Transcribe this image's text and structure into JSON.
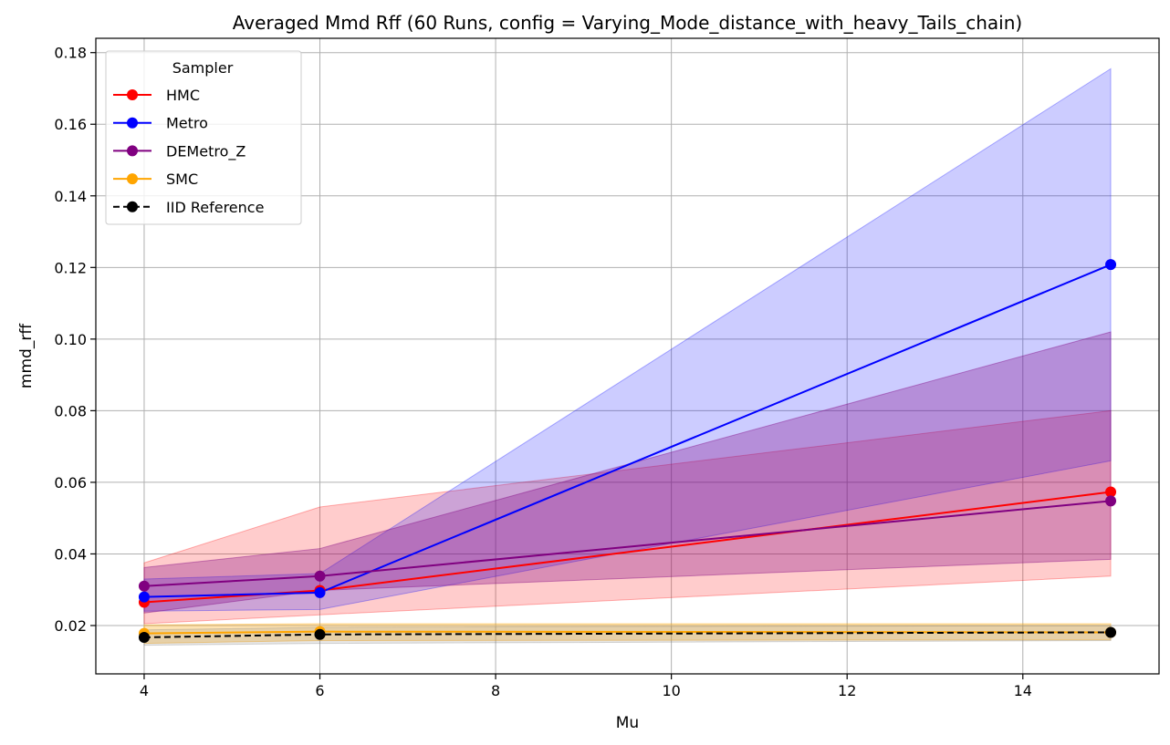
{
  "chart_data": {
    "type": "line",
    "title": "Averaged Mmd Rff (60 Runs, config = Varying_Mode_distance_with_heavy_Tails_chain)",
    "xlabel": "Mu",
    "ylabel": "mmd_rff",
    "x": [
      4,
      6,
      15
    ],
    "xlim": [
      3.45,
      15.55
    ],
    "ylim": [
      0.0065,
      0.184
    ],
    "xticks": [
      4,
      6,
      8,
      10,
      12,
      14
    ],
    "xtick_labels": [
      "4",
      "6",
      "8",
      "10",
      "12",
      "14"
    ],
    "yticks": [
      0.02,
      0.04,
      0.06,
      0.08,
      0.1,
      0.12,
      0.14,
      0.16,
      0.18
    ],
    "ytick_labels": [
      "0.02",
      "0.04",
      "0.06",
      "0.08",
      "0.10",
      "0.12",
      "0.14",
      "0.16",
      "0.18"
    ],
    "grid": true,
    "legend": {
      "title": "Sampler",
      "placement": "upper-left"
    },
    "series": [
      {
        "name": "HMC",
        "color": "#ff0000",
        "band_color": "#ff0000",
        "band_opacity": 0.2,
        "dashed": false,
        "values": [
          0.0265,
          0.0298,
          0.0573
        ],
        "lower": [
          0.0205,
          0.023,
          0.0338
        ],
        "upper": [
          0.0375,
          0.0531,
          0.08
        ]
      },
      {
        "name": "Metro",
        "color": "#0000ff",
        "band_color": "#0000ff",
        "band_opacity": 0.2,
        "dashed": false,
        "values": [
          0.028,
          0.0292,
          0.1208
        ],
        "lower": [
          0.024,
          0.0245,
          0.066
        ],
        "upper": [
          0.033,
          0.0345,
          0.1755
        ]
      },
      {
        "name": "DEMetro_Z",
        "color": "#800080",
        "band_color": "#800080",
        "band_opacity": 0.3,
        "dashed": false,
        "values": [
          0.031,
          0.0338,
          0.0548
        ],
        "lower": [
          0.0235,
          0.0298,
          0.0385
        ],
        "upper": [
          0.0362,
          0.0415,
          0.102
        ]
      },
      {
        "name": "SMC",
        "color": "#ffa500",
        "band_color": "#ffa500",
        "band_opacity": 0.3,
        "dashed": false,
        "values": [
          0.0178,
          0.0183,
          0.0181
        ],
        "lower": [
          0.015,
          0.0158,
          0.016
        ],
        "upper": [
          0.0202,
          0.0205,
          0.0205
        ]
      },
      {
        "name": "IID Reference",
        "color": "#000000",
        "band_color": "#808080",
        "band_opacity": 0.2,
        "dashed": true,
        "values": [
          0.0167,
          0.0175,
          0.0181
        ],
        "lower": [
          0.0145,
          0.015,
          0.0158
        ],
        "upper": [
          0.0188,
          0.0195,
          0.02
        ]
      }
    ]
  }
}
